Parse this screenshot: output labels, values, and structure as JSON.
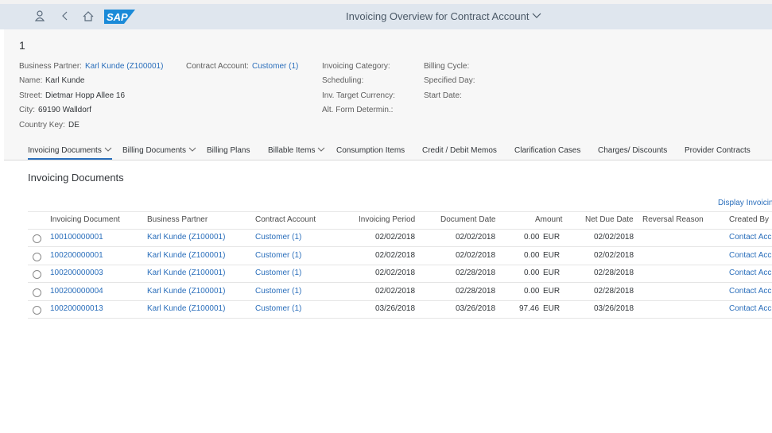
{
  "shell": {
    "logo": "SAP",
    "title": "Invoicing Overview for Contract Account"
  },
  "header": {
    "title": "1",
    "columns": [
      [
        {
          "label": "Business Partner:",
          "value": "Karl Kunde (Z100001)"
        },
        {
          "label": "Name:",
          "value": "Karl Kunde"
        },
        {
          "label": "Street:",
          "value": "Dietmar Hopp Allee 16"
        },
        {
          "label": "City:",
          "value": "69190 Walldorf"
        },
        {
          "label": "Country Key:",
          "value": "DE"
        }
      ],
      [
        {
          "label": "Contract Account:",
          "value": "Customer (1)"
        }
      ],
      [
        {
          "label": "Invoicing Category:"
        },
        {
          "label": "Scheduling:"
        },
        {
          "label": "Inv. Target Currency:"
        },
        {
          "label": "Alt. Form Determin.:"
        }
      ],
      [
        {
          "label": "Billing Cycle:"
        },
        {
          "label": "Specified Day:"
        },
        {
          "label": "Start Date:"
        }
      ]
    ]
  },
  "tabs": [
    {
      "label": "Invoicing Documents",
      "menu": true,
      "selected": true
    },
    {
      "label": "Billing Documents",
      "menu": true
    },
    {
      "label": "Billing Plans"
    },
    {
      "label": "Billable Items",
      "menu": true
    },
    {
      "label": "Consumption Items"
    },
    {
      "label": "Credit / Debit Memos"
    },
    {
      "label": "Clarification Cases"
    },
    {
      "label": "Charges/ Discounts"
    },
    {
      "label": "Provider Contracts"
    }
  ],
  "section": {
    "title": "Invoicing Documents",
    "action": "Display Invoicin"
  },
  "table": {
    "columns": [
      "Invoicing Document",
      "Business Partner",
      "Contract Account",
      "Invoicing Period",
      "Document Date",
      "Amount",
      "Net Due Date",
      "Reversal Reason",
      "Created By"
    ],
    "rows": [
      {
        "document": "100100000001",
        "partner": "Karl Kunde (Z100001)",
        "account": "Customer (1)",
        "period": "02/02/2018",
        "doc_date": "02/02/2018",
        "amount": "0.00",
        "currency": "EUR",
        "due_date": "02/02/2018",
        "created_by": "Contact Acc"
      },
      {
        "document": "100200000001",
        "partner": "Karl Kunde (Z100001)",
        "account": "Customer (1)",
        "period": "02/02/2018",
        "doc_date": "02/02/2018",
        "amount": "0.00",
        "currency": "EUR",
        "due_date": "02/02/2018",
        "created_by": "Contact Acc"
      },
      {
        "document": "100200000003",
        "partner": "Karl Kunde (Z100001)",
        "account": "Customer (1)",
        "period": "02/02/2018",
        "doc_date": "02/28/2018",
        "amount": "0.00",
        "currency": "EUR",
        "due_date": "02/28/2018",
        "created_by": "Contact Acc"
      },
      {
        "document": "100200000004",
        "partner": "Karl Kunde (Z100001)",
        "account": "Customer (1)",
        "period": "02/02/2018",
        "doc_date": "02/28/2018",
        "amount": "0.00",
        "currency": "EUR",
        "due_date": "02/28/2018",
        "created_by": "Contact Acc"
      },
      {
        "document": "100200000013",
        "partner": "Karl Kunde (Z100001)",
        "account": "Customer (1)",
        "period": "03/26/2018",
        "doc_date": "03/26/2018",
        "amount": "97.46",
        "currency": "EUR",
        "due_date": "03/26/2018",
        "created_by": "Contact Acc"
      }
    ]
  }
}
